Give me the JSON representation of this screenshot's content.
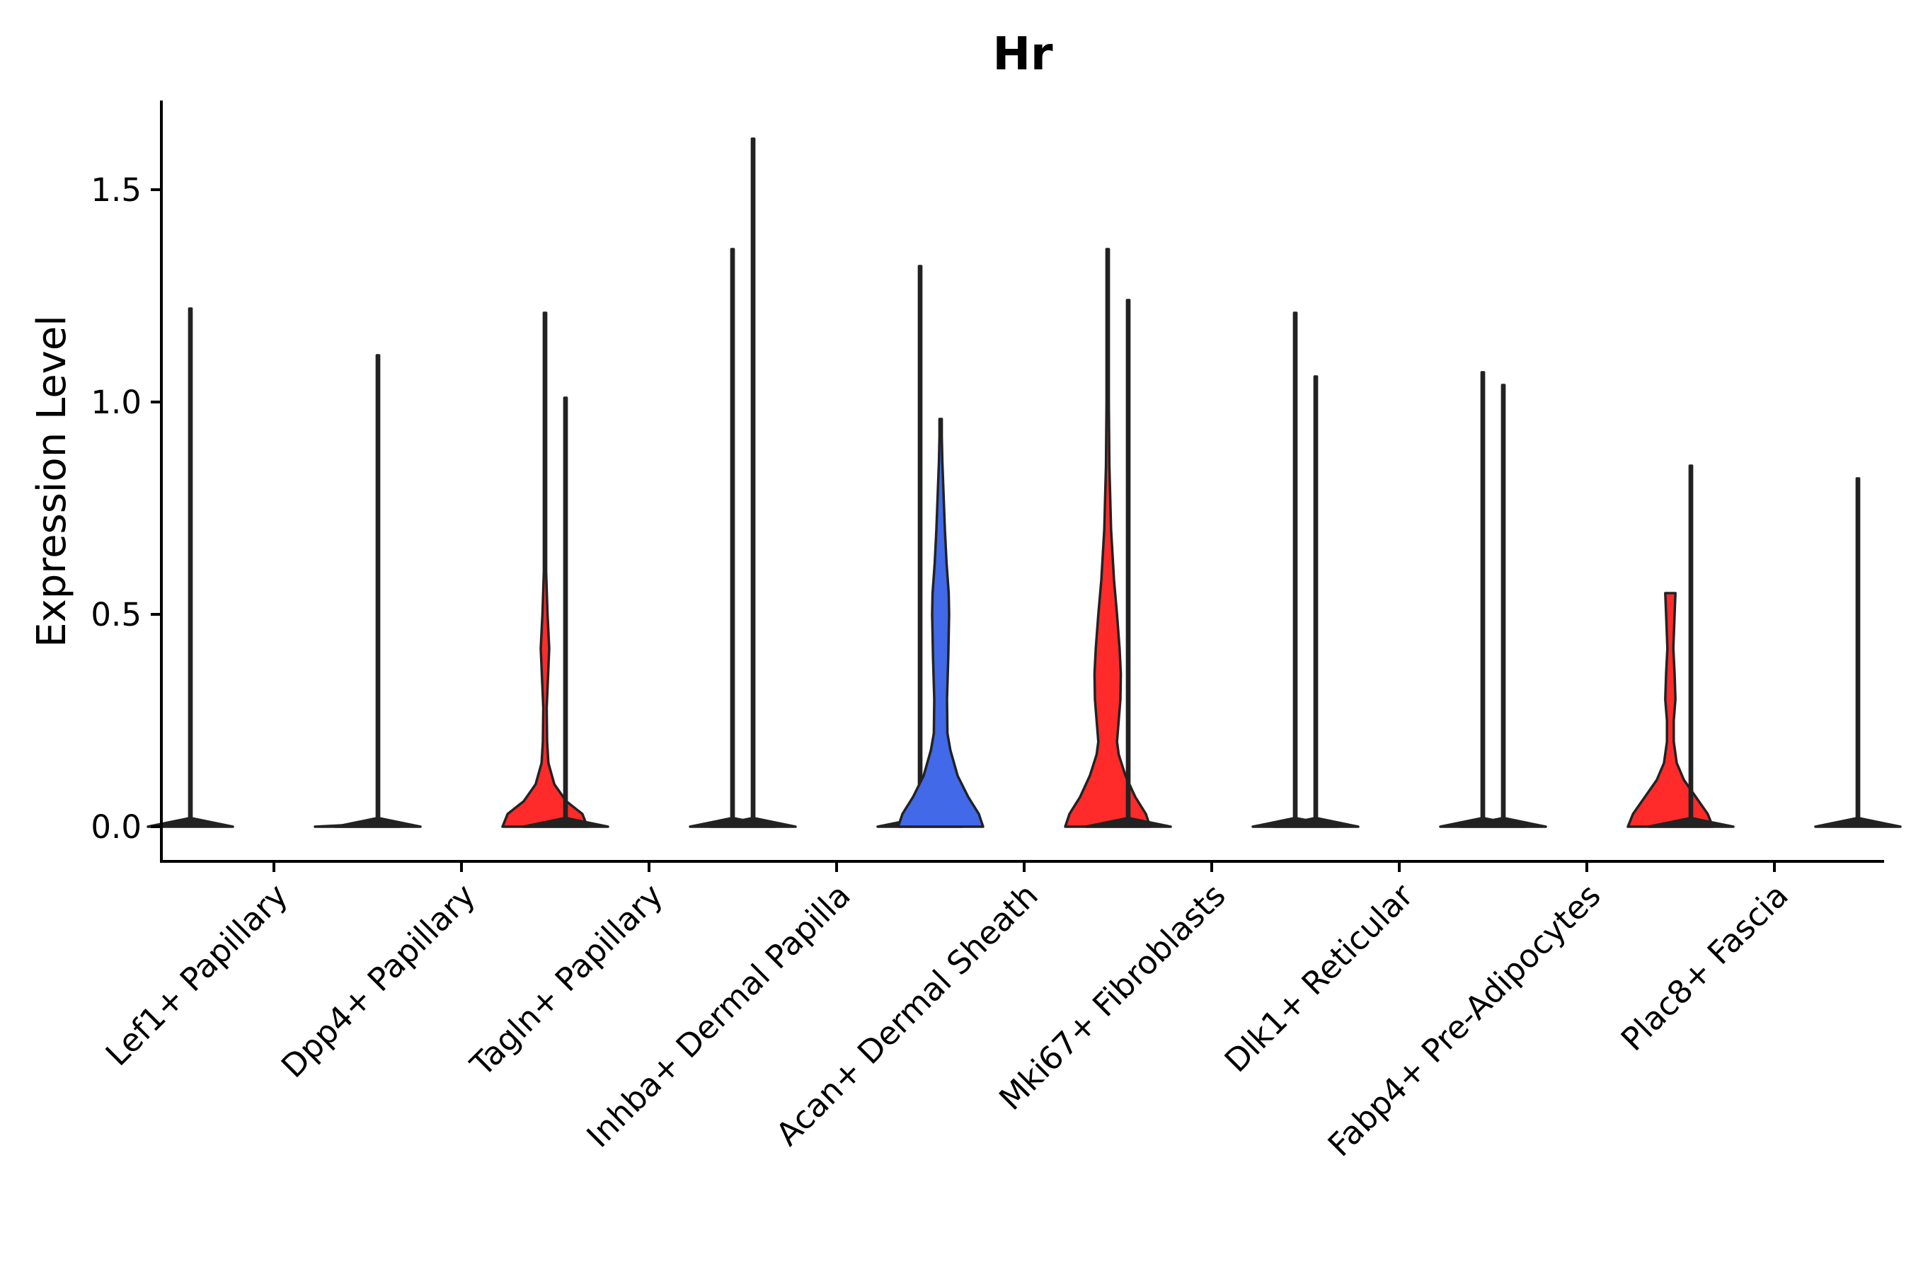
{
  "chart_data": {
    "type": "violin",
    "title": "Hr",
    "xlabel": "",
    "ylabel": "Expression Level",
    "ylim": [
      -0.08,
      1.7
    ],
    "yticks": [
      0.0,
      0.5,
      1.0,
      1.5
    ],
    "ytick_labels": [
      "0.0",
      "0.5",
      "1.0",
      "1.5"
    ],
    "categories": [
      "Lef1+ Papillary",
      "Dpp4+ Papillary",
      "Tagln+ Papillary",
      "Inhba+ Dermal Papilla",
      "Acan+ Dermal Sheath",
      "Mki67+ Fibroblasts",
      "Dlk1+ Reticular",
      "Fabp4+ Pre-Adipocytes",
      "Plac8+ Fascia"
    ],
    "colors": {
      "group_a": "#4169e8",
      "group_b": "#ff2b2b"
    },
    "violins": [
      {
        "category": "Lef1+ Papillary",
        "group": "a",
        "max": 1.22,
        "color": "#4169e8",
        "profile": [
          [
            0,
            1.0
          ],
          [
            0.02,
            0.0
          ],
          [
            1.22,
            0.0
          ]
        ]
      },
      {
        "category": "Lef1+ Papillary",
        "group": "b",
        "max": 0.0,
        "color": "#ff2b2b",
        "profile": [
          [
            0,
            1.0
          ],
          [
            0.005,
            0.0
          ]
        ]
      },
      {
        "category": "Dpp4+ Papillary",
        "group": "a",
        "max": 1.11,
        "color": "#4169e8",
        "profile": [
          [
            0,
            1.0
          ],
          [
            0.02,
            0.0
          ],
          [
            1.11,
            0.0
          ]
        ]
      },
      {
        "category": "Dpp4+ Papillary",
        "group": "b",
        "max": 1.21,
        "color": "#ff2b2b",
        "profile": [
          [
            0,
            1.0
          ],
          [
            0.03,
            0.88
          ],
          [
            0.06,
            0.5
          ],
          [
            0.1,
            0.22
          ],
          [
            0.15,
            0.08
          ],
          [
            0.2,
            0.05
          ],
          [
            0.28,
            0.04
          ],
          [
            0.35,
            0.07
          ],
          [
            0.42,
            0.1
          ],
          [
            0.5,
            0.06
          ],
          [
            0.6,
            0.02
          ],
          [
            0.75,
            0.012
          ],
          [
            0.95,
            0.005
          ],
          [
            1.21,
            0.0
          ]
        ]
      },
      {
        "category": "Tagln+ Papillary",
        "group": "a",
        "max": 1.01,
        "color": "#4169e8",
        "profile": [
          [
            0,
            1.0
          ],
          [
            0.02,
            0.0
          ],
          [
            1.01,
            0.0
          ]
        ]
      },
      {
        "category": "Tagln+ Papillary",
        "group": "b",
        "max": 1.36,
        "color": "#ff2b2b",
        "profile": [
          [
            0,
            1.0
          ],
          [
            0.02,
            0.0
          ],
          [
            1.36,
            0.0
          ]
        ]
      },
      {
        "category": "Inhba+ Dermal Papilla",
        "group": "a",
        "max": 1.62,
        "color": "#4169e8",
        "profile": [
          [
            0,
            1.0
          ],
          [
            0.02,
            0.0
          ],
          [
            1.62,
            0.0
          ]
        ]
      },
      {
        "category": "Inhba+ Dermal Papilla",
        "group": "b",
        "max": 1.32,
        "color": "#ff2b2b",
        "profile": [
          [
            0,
            1.0
          ],
          [
            0.02,
            0.0
          ],
          [
            1.32,
            0.0
          ]
        ]
      },
      {
        "category": "Acan+ Dermal Sheath",
        "group": "a",
        "max": 0.96,
        "color": "#4169e8",
        "profile": [
          [
            0,
            1.0
          ],
          [
            0.03,
            0.9
          ],
          [
            0.07,
            0.65
          ],
          [
            0.12,
            0.4
          ],
          [
            0.18,
            0.23
          ],
          [
            0.22,
            0.16
          ],
          [
            0.3,
            0.15
          ],
          [
            0.4,
            0.18
          ],
          [
            0.5,
            0.2
          ],
          [
            0.55,
            0.19
          ],
          [
            0.62,
            0.14
          ],
          [
            0.7,
            0.1
          ],
          [
            0.78,
            0.07
          ],
          [
            0.86,
            0.04
          ],
          [
            0.92,
            0.02
          ],
          [
            0.96,
            0.0
          ]
        ]
      },
      {
        "category": "Acan+ Dermal Sheath",
        "group": "b",
        "max": 1.36,
        "color": "#ff2b2b",
        "profile": [
          [
            0,
            1.0
          ],
          [
            0.03,
            0.9
          ],
          [
            0.07,
            0.65
          ],
          [
            0.12,
            0.42
          ],
          [
            0.17,
            0.26
          ],
          [
            0.2,
            0.22
          ],
          [
            0.25,
            0.26
          ],
          [
            0.3,
            0.3
          ],
          [
            0.36,
            0.31
          ],
          [
            0.42,
            0.28
          ],
          [
            0.5,
            0.22
          ],
          [
            0.58,
            0.15
          ],
          [
            0.7,
            0.08
          ],
          [
            0.85,
            0.04
          ],
          [
            1.0,
            0.015
          ],
          [
            1.2,
            0.005
          ],
          [
            1.36,
            0.0
          ]
        ]
      },
      {
        "category": "Mki67+ Fibroblasts",
        "group": "a",
        "max": 1.24,
        "color": "#4169e8",
        "profile": [
          [
            0,
            1.0
          ],
          [
            0.02,
            0.0
          ],
          [
            1.24,
            0.0
          ]
        ]
      },
      {
        "category": "Mki67+ Fibroblasts",
        "group": "b",
        "max": 1.21,
        "color": "#ff2b2b",
        "profile": [
          [
            0,
            1.0
          ],
          [
            0.02,
            0.0
          ],
          [
            1.21,
            0.0
          ]
        ]
      },
      {
        "category": "Dlk1+ Reticular",
        "group": "a",
        "max": 1.06,
        "color": "#4169e8",
        "profile": [
          [
            0,
            1.0
          ],
          [
            0.02,
            0.0
          ],
          [
            1.06,
            0.0
          ]
        ]
      },
      {
        "category": "Dlk1+ Reticular",
        "group": "b",
        "max": 1.07,
        "color": "#ff2b2b",
        "profile": [
          [
            0,
            1.0
          ],
          [
            0.02,
            0.0
          ],
          [
            1.07,
            0.0
          ]
        ]
      },
      {
        "category": "Fabp4+ Pre-Adipocytes",
        "group": "a",
        "max": 1.04,
        "color": "#4169e8",
        "profile": [
          [
            0,
            1.0
          ],
          [
            0.02,
            0.0
          ],
          [
            1.04,
            0.0
          ]
        ]
      },
      {
        "category": "Fabp4+ Pre-Adipocytes",
        "group": "b",
        "max": 0.55,
        "color": "#ff2b2b",
        "profile": [
          [
            0,
            1.0
          ],
          [
            0.03,
            0.88
          ],
          [
            0.07,
            0.6
          ],
          [
            0.11,
            0.32
          ],
          [
            0.15,
            0.15
          ],
          [
            0.2,
            0.08
          ],
          [
            0.25,
            0.08
          ],
          [
            0.3,
            0.12
          ],
          [
            0.36,
            0.1
          ],
          [
            0.42,
            0.07
          ],
          [
            0.5,
            0.1
          ],
          [
            0.55,
            0.12
          ]
        ]
      },
      {
        "category": "Plac8+ Fascia",
        "group": "a",
        "max": 0.85,
        "color": "#4169e8",
        "profile": [
          [
            0,
            1.0
          ],
          [
            0.02,
            0.0
          ],
          [
            0.85,
            0.0
          ]
        ]
      },
      {
        "category": "Plac8+ Fascia",
        "group": "b",
        "max": 0.82,
        "color": "#ff2b2b",
        "profile": [
          [
            0,
            1.0
          ],
          [
            0.02,
            0.0
          ],
          [
            0.82,
            0.0
          ]
        ]
      }
    ]
  }
}
